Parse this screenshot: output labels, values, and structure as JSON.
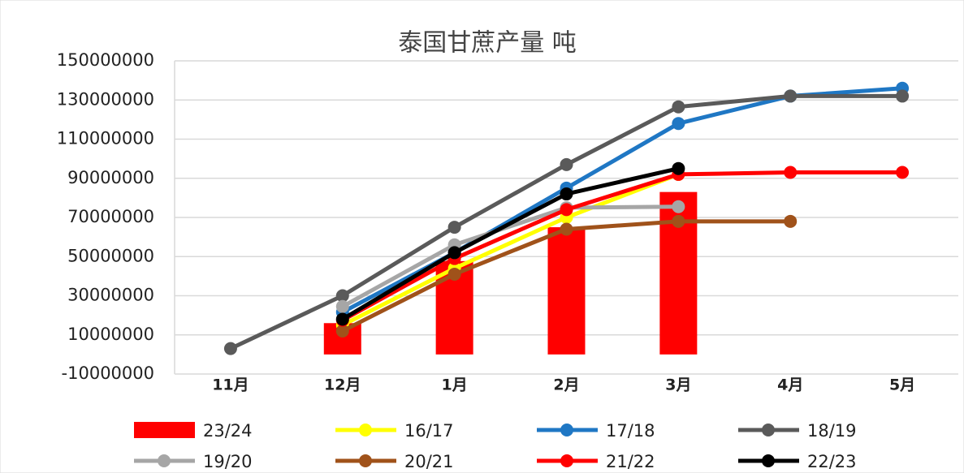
{
  "chart_data": {
    "type": "combo",
    "title": "泰国甘蔗产量 吨",
    "categories": [
      "11月",
      "12月",
      "1月",
      "2月",
      "3月",
      "4月",
      "5月"
    ],
    "ylim": [
      -10000000,
      150000000
    ],
    "yticks": [
      -10000000,
      10000000,
      30000000,
      50000000,
      70000000,
      90000000,
      110000000,
      130000000,
      150000000
    ],
    "grid": true,
    "series": [
      {
        "name": "23/24",
        "type": "bar",
        "color": "#ff0000",
        "values": [
          null,
          16000000,
          47700000,
          65000000,
          83000000,
          null,
          null
        ]
      },
      {
        "name": "16/17",
        "type": "line",
        "color": "#ffff00",
        "values": [
          null,
          15000000,
          44000000,
          70000000,
          92000000,
          null,
          null
        ]
      },
      {
        "name": "17/18",
        "type": "line",
        "color": "#1f77c4",
        "values": [
          null,
          21600000,
          52000000,
          85000000,
          118000000,
          132000000,
          136000000
        ]
      },
      {
        "name": "18/19",
        "type": "line",
        "color": "#5a5a5a",
        "values": [
          3000000,
          30000000,
          65000000,
          97000000,
          126500000,
          132000000,
          132000000
        ]
      },
      {
        "name": "19/20",
        "type": "line",
        "color": "#a6a6a6",
        "values": [
          null,
          24500000,
          56000000,
          75000000,
          75500000,
          null,
          null
        ]
      },
      {
        "name": "20/21",
        "type": "line",
        "color": "#a0521a",
        "values": [
          null,
          12000000,
          41000000,
          64000000,
          68000000,
          68000000,
          null
        ]
      },
      {
        "name": "21/22",
        "type": "line",
        "color": "#ff0000",
        "values": [
          null,
          17500000,
          49000000,
          74000000,
          92000000,
          93000000,
          93000000
        ]
      },
      {
        "name": "22/23",
        "type": "line",
        "color": "#000000",
        "values": [
          null,
          18000000,
          52000000,
          82000000,
          95000000,
          null,
          null
        ]
      }
    ]
  }
}
